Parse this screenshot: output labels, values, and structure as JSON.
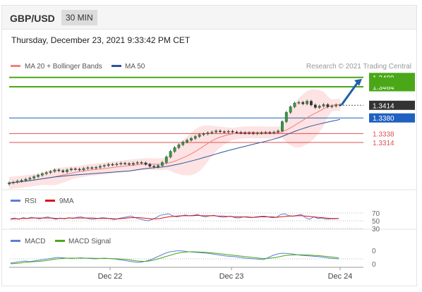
{
  "header": {
    "pair": "GBP/USD",
    "timeframe": "30 MIN",
    "timestamp": "Thursday, December 23, 2021 9:33:42 PM CET"
  },
  "main_legend": {
    "items": [
      {
        "label": "MA 20 + Bollinger Bands",
        "color": "#f08080"
      },
      {
        "label": "MA 50",
        "color": "#2f5597"
      }
    ],
    "credit": "Research © 2021 Trading Central"
  },
  "rsi_legend": {
    "items": [
      {
        "label": "RSI",
        "color": "#5b7fd6"
      },
      {
        "label": "9MA",
        "color": "#dd1111"
      }
    ]
  },
  "macd_legend": {
    "items": [
      {
        "label": "MACD",
        "color": "#5b7fd6"
      },
      {
        "label": "MACD Signal",
        "color": "#4aa818"
      }
    ]
  },
  "colors": {
    "resistance": "#4aa818",
    "pivot": "#2060c0",
    "support": "#e05050",
    "price_tag": "#333333",
    "arrow": "#2060a8"
  },
  "chart_data": [
    {
      "type": "candlestick",
      "x_labels": [
        "Dec 22",
        "Dec 23",
        "Dec 24"
      ],
      "y_range": [
        1.32,
        1.35
      ],
      "price_levels": [
        {
          "label": "1.3489",
          "value": 1.3489,
          "kind": "resistance"
        },
        {
          "label": "1.3464",
          "value": 1.3464,
          "kind": "resistance"
        },
        {
          "label": "1.3414",
          "value": 1.3414,
          "kind": "last_price"
        },
        {
          "label": "1.3380",
          "value": 1.338,
          "kind": "pivot"
        },
        {
          "label": "1.3338",
          "value": 1.3338,
          "kind": "support"
        },
        {
          "label": "1.3314",
          "value": 1.3314,
          "kind": "support"
        }
      ],
      "series": [
        {
          "name": "MA 20 + Bollinger Bands"
        },
        {
          "name": "MA 50"
        }
      ],
      "closes": [
        1.3205,
        1.3207,
        1.321,
        1.3212,
        1.3215,
        1.3218,
        1.3222,
        1.3226,
        1.323,
        1.3233,
        1.3236,
        1.324,
        1.3238,
        1.3235,
        1.324,
        1.3243,
        1.3242,
        1.324,
        1.3244,
        1.3246,
        1.3245,
        1.3247,
        1.325,
        1.3252,
        1.3255,
        1.3254,
        1.3256,
        1.3258,
        1.3257,
        1.3255,
        1.3258,
        1.326,
        1.3259,
        1.3255,
        1.325,
        1.3248,
        1.3252,
        1.326,
        1.3275,
        1.329,
        1.33,
        1.3308,
        1.3315,
        1.332,
        1.3325,
        1.333,
        1.3335,
        1.3337,
        1.334,
        1.3342,
        1.3345,
        1.3343,
        1.3342,
        1.3344,
        1.3342,
        1.3341,
        1.334,
        1.3339,
        1.334,
        1.3338,
        1.3339,
        1.334,
        1.3341,
        1.334,
        1.3342,
        1.3345,
        1.337,
        1.3395,
        1.341,
        1.342,
        1.3422,
        1.3418,
        1.3425,
        1.3415,
        1.3408,
        1.3412,
        1.3416,
        1.341,
        1.3412,
        1.3415,
        1.3414
      ]
    },
    {
      "type": "line",
      "title": "RSI",
      "y_ticks": [
        70,
        50,
        30
      ],
      "y_range": [
        0,
        100
      ],
      "series": [
        {
          "name": "RSI",
          "values": [
            55,
            57,
            54,
            58,
            56,
            59,
            57,
            55,
            58,
            60,
            56,
            54,
            57,
            55,
            58,
            56,
            59,
            60,
            57,
            55,
            54,
            56,
            58,
            57,
            55,
            53,
            56,
            58,
            60,
            62,
            58,
            55,
            52,
            50,
            53,
            58,
            64,
            66,
            68,
            63,
            60,
            62,
            65,
            63,
            64,
            66,
            62,
            60,
            63,
            64,
            61,
            59,
            60,
            62,
            58,
            57,
            60,
            59,
            58,
            60,
            61,
            62,
            60,
            58,
            59,
            66,
            68,
            63,
            62,
            64,
            66,
            58,
            54,
            60,
            56,
            57,
            54,
            55,
            55,
            56
          ]
        },
        {
          "name": "9MA",
          "values": [
            54,
            55,
            55,
            56,
            56,
            57,
            57,
            57,
            57,
            57,
            57,
            56,
            56,
            56,
            57,
            57,
            57,
            57,
            57,
            57,
            57,
            56,
            56,
            56,
            56,
            55,
            55,
            56,
            57,
            58,
            58,
            58,
            57,
            56,
            55,
            55,
            56,
            58,
            60,
            61,
            62,
            63,
            63,
            63,
            63,
            64,
            63,
            63,
            63,
            63,
            62,
            62,
            61,
            61,
            60,
            60,
            60,
            60,
            59,
            59,
            60,
            60,
            60,
            60,
            59,
            60,
            61,
            62,
            62,
            63,
            63,
            62,
            61,
            60,
            59,
            58,
            57,
            56,
            56,
            56
          ]
        }
      ]
    },
    {
      "type": "line",
      "title": "MACD",
      "y_ticks": [
        0,
        0
      ],
      "series": [
        {
          "name": "MACD",
          "values": [
            -0.6,
            -0.5,
            -0.4,
            -0.3,
            -0.4,
            -0.3,
            -0.2,
            -0.1,
            0.0,
            0.1,
            0.2,
            0.15,
            0.1,
            0.05,
            0.1,
            0.15,
            0.1,
            0.05,
            0.0,
            0.05,
            0.1,
            0.05,
            0.0,
            -0.1,
            -0.2,
            -0.3,
            -0.4,
            -0.5,
            -0.45,
            -0.3,
            -0.1,
            0.2,
            0.5,
            0.8,
            1.0,
            1.1,
            1.15,
            1.1,
            1.0,
            0.95,
            0.9,
            0.85,
            0.8,
            0.7,
            0.6,
            0.5,
            0.4,
            0.35,
            0.3,
            0.2,
            0.1,
            0.05,
            0.0,
            -0.05,
            -0.1,
            0.2,
            0.5,
            0.7,
            0.8,
            0.75,
            0.7,
            0.6,
            0.5,
            0.45,
            0.4,
            0.35,
            0.3,
            0.2,
            0.1,
            0.05,
            0.0
          ]
        },
        {
          "name": "MACD Signal",
          "values": [
            -0.7,
            -0.65,
            -0.6,
            -0.5,
            -0.45,
            -0.4,
            -0.35,
            -0.3,
            -0.2,
            -0.1,
            0.0,
            0.05,
            0.1,
            0.1,
            0.1,
            0.1,
            0.1,
            0.1,
            0.08,
            0.06,
            0.05,
            0.05,
            0.03,
            0.0,
            -0.05,
            -0.1,
            -0.2,
            -0.3,
            -0.35,
            -0.35,
            -0.25,
            -0.1,
            0.1,
            0.3,
            0.5,
            0.7,
            0.85,
            0.95,
            1.0,
            1.0,
            0.98,
            0.95,
            0.9,
            0.85,
            0.78,
            0.7,
            0.62,
            0.55,
            0.48,
            0.4,
            0.32,
            0.25,
            0.18,
            0.1,
            0.05,
            0.08,
            0.15,
            0.25,
            0.4,
            0.5,
            0.55,
            0.58,
            0.58,
            0.56,
            0.52,
            0.48,
            0.44,
            0.38,
            0.3,
            0.22,
            0.15
          ]
        }
      ]
    }
  ]
}
